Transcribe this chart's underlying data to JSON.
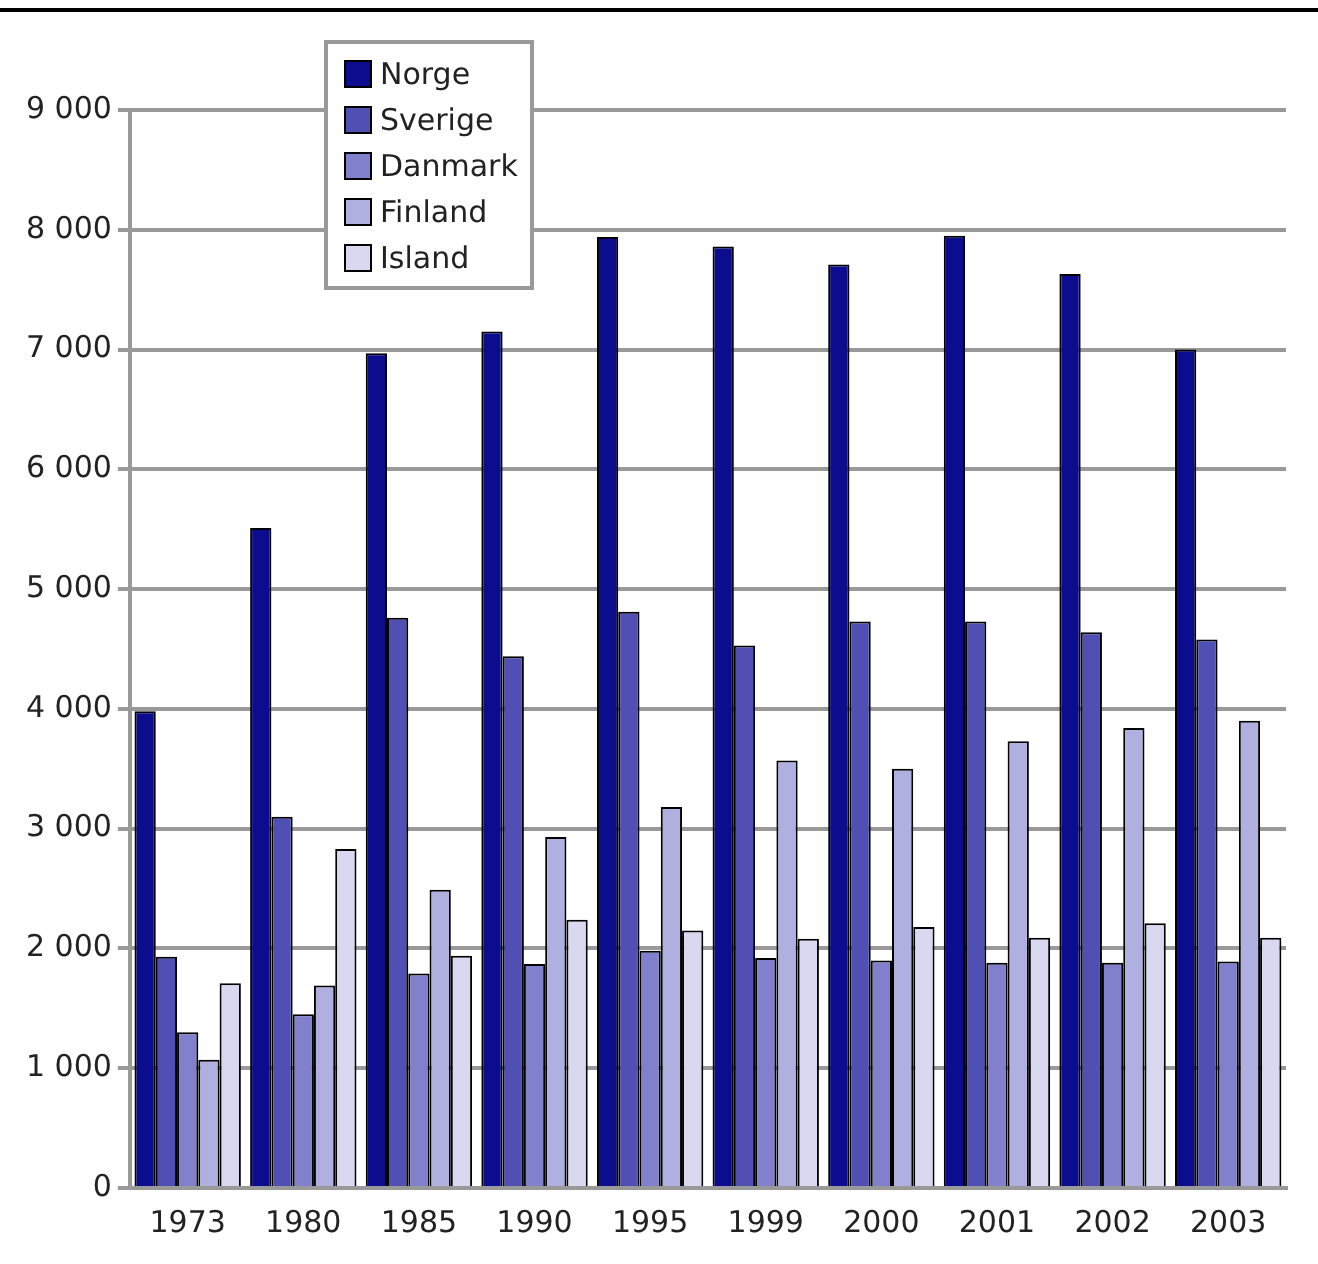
{
  "chart_data": {
    "type": "bar",
    "categories": [
      "1973",
      "1980",
      "1985",
      "1990",
      "1995",
      "1999",
      "2000",
      "2001",
      "2002",
      "2003"
    ],
    "series": [
      {
        "name": "Norge",
        "color": "#0c0c8f",
        "values": [
          3980,
          5510,
          6970,
          7150,
          7940,
          7860,
          7710,
          7950,
          7630,
          7000
        ]
      },
      {
        "name": "Sverige",
        "color": "#5050b4",
        "values": [
          1930,
          3100,
          4760,
          4440,
          4810,
          4530,
          4730,
          4730,
          4640,
          4580
        ]
      },
      {
        "name": "Danmark",
        "color": "#8080cc",
        "values": [
          1300,
          1450,
          1790,
          1870,
          1980,
          1920,
          1900,
          1880,
          1880,
          1890
        ]
      },
      {
        "name": "Finland",
        "color": "#b0b0e0",
        "values": [
          1070,
          1690,
          2490,
          2930,
          3180,
          3570,
          3500,
          3730,
          3840,
          3900
        ]
      },
      {
        "name": "Island",
        "color": "#d8d8f0",
        "values": [
          1710,
          2830,
          1940,
          2240,
          2150,
          2080,
          2180,
          2090,
          2210,
          2090
        ]
      }
    ],
    "ylim": [
      0,
      9000
    ],
    "yticks": [
      0,
      {
        "value": 1000,
        "label": "1 000"
      },
      {
        "value": 2000,
        "label": "2 000"
      },
      {
        "value": 3000,
        "label": "3 000"
      },
      {
        "value": 4000,
        "label": "4 000"
      },
      {
        "value": 5000,
        "label": "5 000"
      },
      {
        "value": 6000,
        "label": "6 000"
      },
      {
        "value": 7000,
        "label": "7 000"
      },
      {
        "value": 8000,
        "label": "8 000"
      },
      {
        "value": 9000,
        "label": "9 000"
      }
    ],
    "grid": "y",
    "legend": "top left"
  }
}
